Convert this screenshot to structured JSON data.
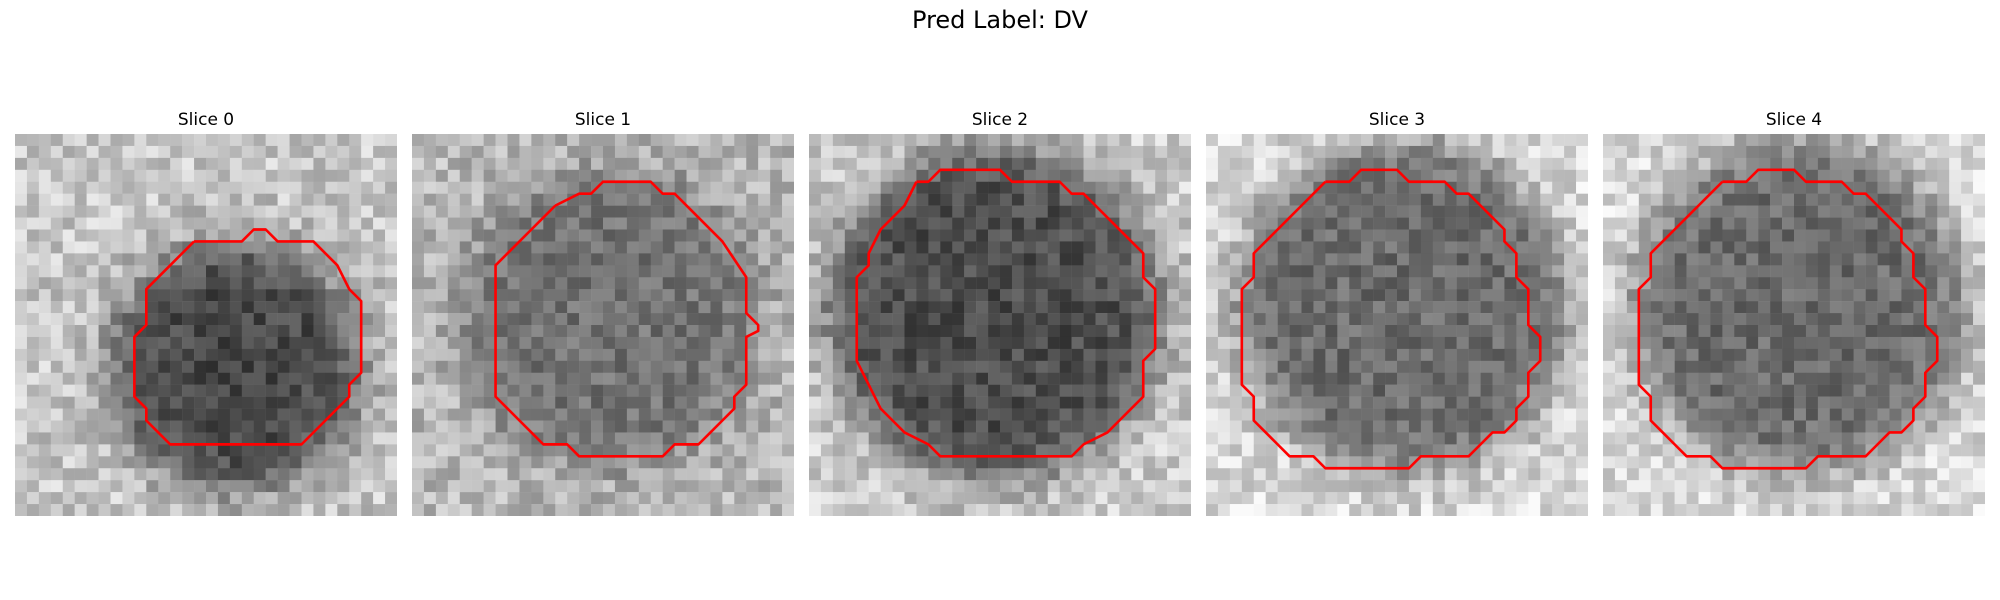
{
  "figure": {
    "suptitle": "Pred Label: DV"
  },
  "panels": [
    {
      "title": "Slice 0"
    },
    {
      "title": "Slice 1"
    },
    {
      "title": "Slice 2"
    },
    {
      "title": "Slice 3"
    },
    {
      "title": "Slice 4"
    }
  ],
  "colors": {
    "contour": "#ff0000",
    "background": "#ffffff"
  }
}
